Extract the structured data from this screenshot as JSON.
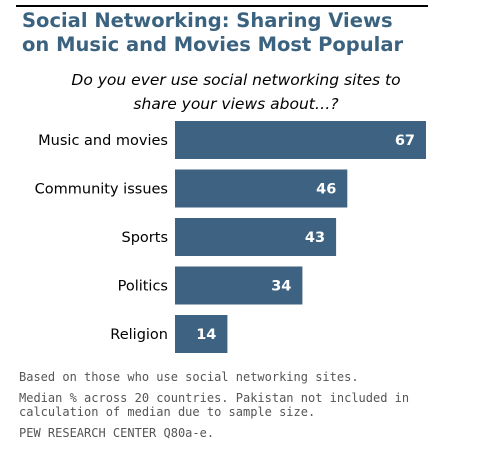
{
  "title": "Social Networking: Sharing Views\non Music and Movies Most Popular",
  "subtitle": "Do you ever use social networking sites to\nshare your views about…?",
  "notes": [
    "Based on those who use social networking sites.",
    "Median % across 20 countries. Pakistan not included in\ncalculation of median due to sample size.",
    "PEW RESEARCH CENTER Q80a-e."
  ],
  "colors": {
    "bar": "#3d6282",
    "title": "#3b6380",
    "value_label": "#ffffff"
  },
  "chart_data": {
    "type": "bar",
    "orientation": "horizontal",
    "categories": [
      "Music and movies",
      "Community issues",
      "Sports",
      "Politics",
      "Religion"
    ],
    "values": [
      67,
      46,
      43,
      34,
      14
    ],
    "title": "Social Networking: Sharing Views on Music and Movies Most Popular",
    "subtitle": "Do you ever use social networking sites to share your views about…?",
    "data_labels": true,
    "grid": false,
    "legend": "none"
  }
}
